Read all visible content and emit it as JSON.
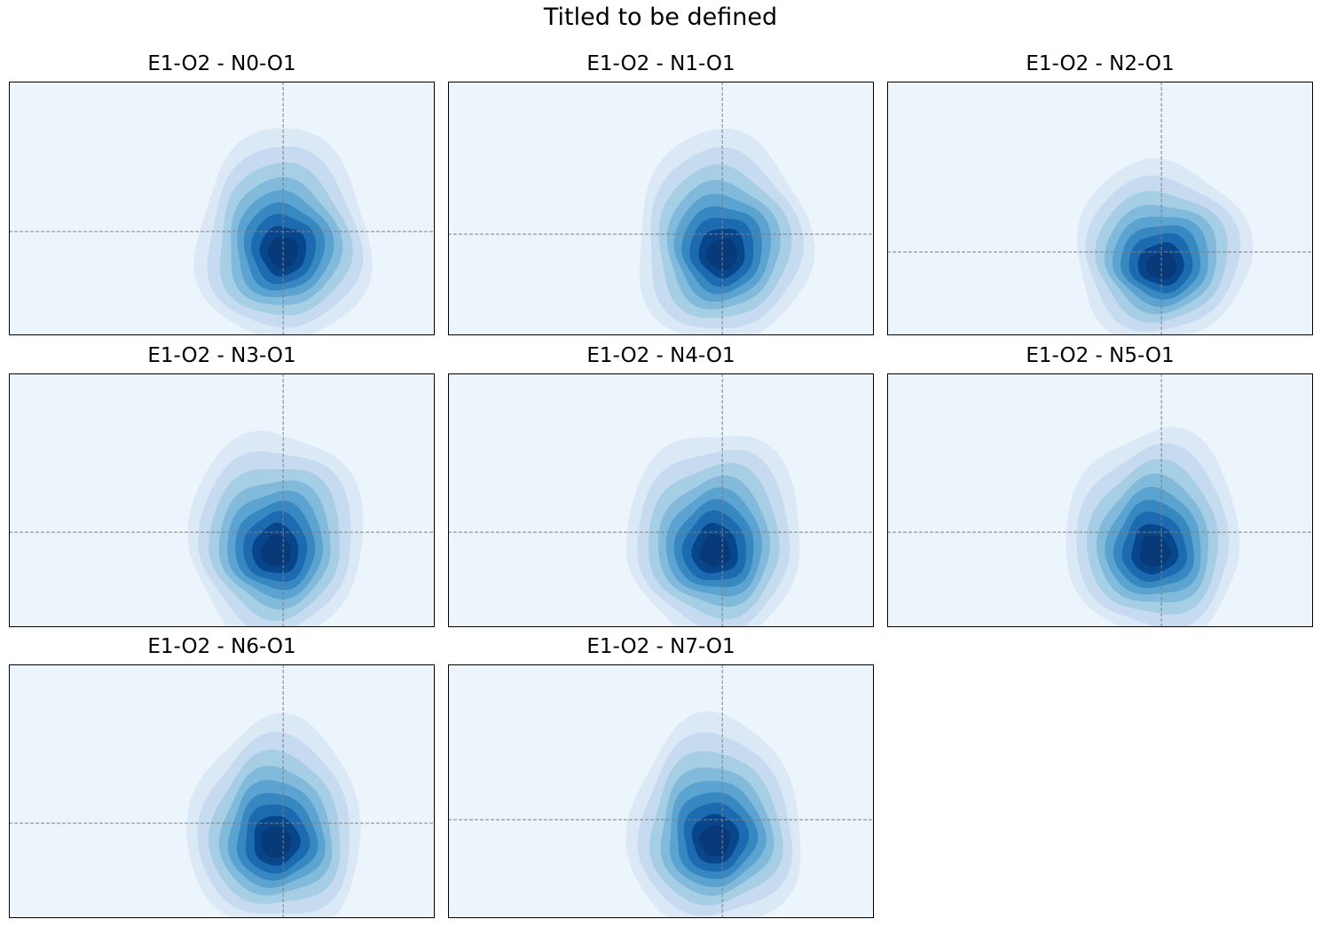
{
  "figure": {
    "title": "Titled to be defined"
  },
  "chart_data": [
    {
      "type": "kde_contour",
      "title": "E1-O2 - N0-O1",
      "ref_line_x": 0,
      "ref_line_y": 0,
      "peak": [
        0.0,
        -0.05
      ],
      "spread": [
        1.0,
        1.0
      ],
      "axes_visible": false,
      "colormap": "Blues"
    },
    {
      "type": "kde_contour",
      "title": "E1-O2 - N1-O1",
      "ref_line_x": 0,
      "ref_line_y": 0,
      "peak": [
        0.0,
        -0.05
      ],
      "spread": [
        1.0,
        1.0
      ],
      "axes_visible": false,
      "colormap": "Blues"
    },
    {
      "type": "kde_contour",
      "title": "E1-O2 - N2-O1",
      "ref_line_x": 0,
      "ref_line_y": 0,
      "peak": [
        0.0,
        -0.02
      ],
      "spread": [
        1.0,
        0.85
      ],
      "axes_visible": false,
      "colormap": "Blues"
    },
    {
      "type": "kde_contour",
      "title": "E1-O2 - N3-O1",
      "ref_line_x": 0,
      "ref_line_y": 0,
      "peak": [
        -0.1,
        -0.05
      ],
      "spread": [
        1.0,
        1.0
      ],
      "axes_visible": false,
      "colormap": "Blues"
    },
    {
      "type": "kde_contour",
      "title": "E1-O2 - N4-O1",
      "ref_line_x": 0,
      "ref_line_y": 0,
      "peak": [
        -0.1,
        -0.05
      ],
      "spread": [
        1.0,
        1.0
      ],
      "axes_visible": false,
      "colormap": "Blues"
    },
    {
      "type": "kde_contour",
      "title": "E1-O2 - N5-O1",
      "ref_line_x": 0,
      "ref_line_y": 0,
      "peak": [
        -0.1,
        -0.05
      ],
      "spread": [
        1.0,
        1.0
      ],
      "axes_visible": false,
      "colormap": "Blues"
    },
    {
      "type": "kde_contour",
      "title": "E1-O2 - N6-O1",
      "ref_line_x": 0,
      "ref_line_y": 0,
      "peak": [
        -0.1,
        -0.05
      ],
      "spread": [
        1.0,
        1.0
      ],
      "axes_visible": false,
      "colormap": "Blues"
    },
    {
      "type": "kde_contour",
      "title": "E1-O2 - N7-O1",
      "ref_line_x": 0,
      "ref_line_y": 0,
      "peak": [
        -0.1,
        -0.02
      ],
      "spread": [
        1.0,
        1.0
      ],
      "axes_visible": false,
      "colormap": "Blues"
    }
  ],
  "palette": {
    "background": "#ecf4fc",
    "levels": [
      "#dbe9f6",
      "#c6dbef",
      "#a6cee4",
      "#82badb",
      "#5ba3d0",
      "#3787c0",
      "#1c6aaf",
      "#08468b",
      "#083a7a"
    ],
    "ref_line": "#808080",
    "frame": "#000000"
  }
}
